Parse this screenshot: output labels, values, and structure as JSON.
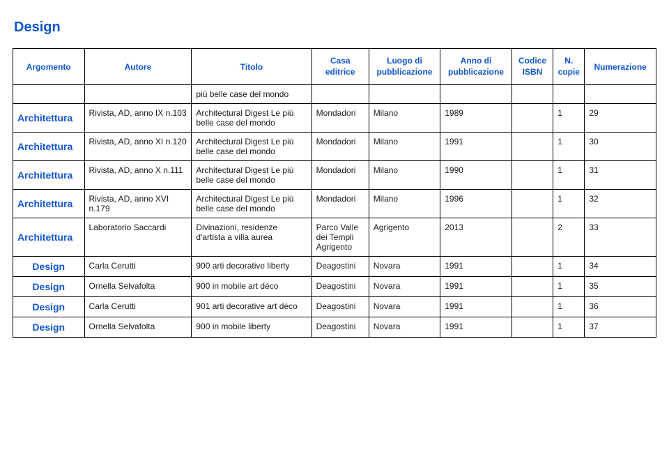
{
  "page_title": "Design",
  "headers": {
    "argomento": "Argomento",
    "autore": "Autore",
    "titolo": "Titolo",
    "casa_editrice_l1": "Casa",
    "casa_editrice_l2": "editrice",
    "luogo_l1": "Luogo di",
    "luogo_l2": "pubblicazione",
    "anno_l1": "Anno di",
    "anno_l2": "pubblicazione",
    "isbn_l1": "Codice",
    "isbn_l2": "ISBN",
    "copie_l1": "N.",
    "copie_l2": "copie",
    "numerazione": "Numerazione"
  },
  "rows": [
    {
      "argomento": "",
      "autore": "",
      "titolo": "più belle case del mondo",
      "casa": "",
      "luogo": "",
      "anno": "",
      "isbn": "",
      "copie": "",
      "numer": ""
    },
    {
      "argomento": "Architettura",
      "autore": "Rivista, AD, anno IX n.103",
      "titolo": "Architectural Digest Le più belle case del mondo",
      "casa": "Mondadori",
      "luogo": "Milano",
      "anno": "1989",
      "isbn": "",
      "copie": "1",
      "numer": "29"
    },
    {
      "argomento": "Architettura",
      "autore": "Rivista, AD, anno XI n.120",
      "titolo": "Architectural Digest Le più belle case del mondo",
      "casa": "Mondadori",
      "luogo": "Milano",
      "anno": "1991",
      "isbn": "",
      "copie": "1",
      "numer": "30"
    },
    {
      "argomento": "Architettura",
      "autore": "Rivista, AD, anno X n.111",
      "titolo": "Architectural Digest Le più belle case del mondo",
      "casa": "Mondadori",
      "luogo": "Milano",
      "anno": "1990",
      "isbn": "",
      "copie": "1",
      "numer": "31"
    },
    {
      "argomento": "Architettura",
      "autore": "Rivista, AD, anno XVI n.179",
      "titolo": "Architectural Digest Le più belle case del mondo",
      "casa": "Mondadori",
      "luogo": "Milano",
      "anno": "1996",
      "isbn": "",
      "copie": "1",
      "numer": "32"
    },
    {
      "argomento": "Architettura",
      "autore": "Laboratorio Saccardi",
      "titolo": "Divinazioni, residenze d'artista a villa aurea",
      "casa": "Parco Valle dei Templi Agrigento",
      "luogo": "Agrigento",
      "anno": "2013",
      "isbn": "",
      "copie": "2",
      "numer": "33"
    },
    {
      "argomento": "Design",
      "autore": "Carla Cerutti",
      "titolo": "900 arti decorative liberty",
      "casa": "Deagostini",
      "luogo": "Novara",
      "anno": "1991",
      "isbn": "",
      "copie": "1",
      "numer": "34"
    },
    {
      "argomento": "Design",
      "autore": "Ornella Selvafolta",
      "titolo": "900 in mobile art dèco",
      "casa": "Deagostini",
      "luogo": "Novara",
      "anno": "1991",
      "isbn": "",
      "copie": "1",
      "numer": "35"
    },
    {
      "argomento": "Design",
      "autore": "Carla Cerutti",
      "titolo": "901 arti decorative art dèco",
      "casa": "Deagostini",
      "luogo": "Novara",
      "anno": "1991",
      "isbn": "",
      "copie": "1",
      "numer": "36"
    },
    {
      "argomento": "Design",
      "autore": "Ornella Selvafolta",
      "titolo": "900 in mobile liberty",
      "casa": "Deagostini",
      "luogo": "Novara",
      "anno": "1991",
      "isbn": "",
      "copie": "1",
      "numer": "37"
    }
  ]
}
